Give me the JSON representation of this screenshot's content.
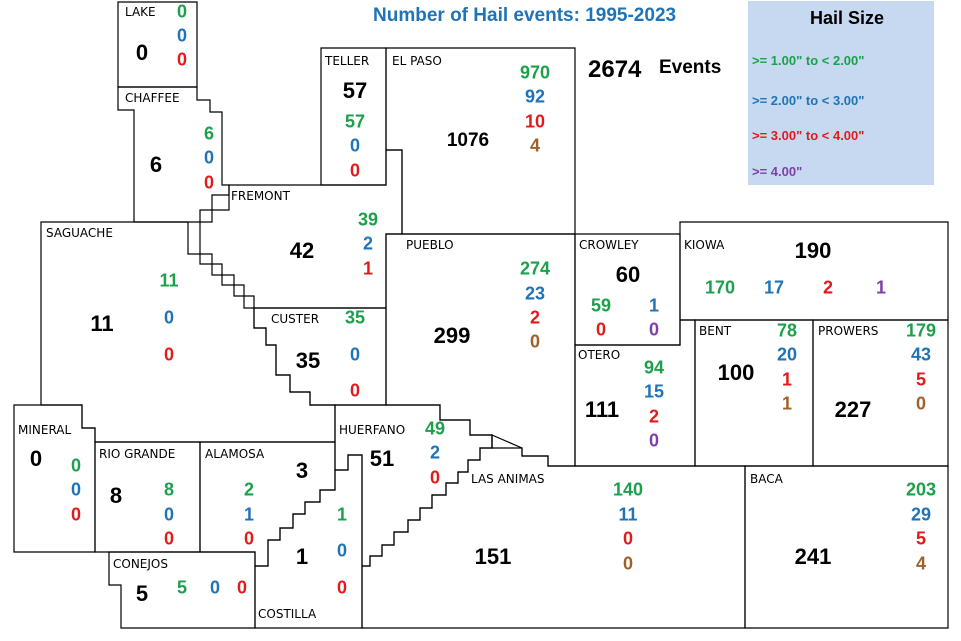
{
  "title": "Number of Hail events: 1995-2023",
  "total": {
    "value": "2674",
    "label": "Events"
  },
  "legend": {
    "title": "Hail Size",
    "items": [
      {
        "label": ">= 1.00\" to < 2.00\"",
        "color": "#1ba04b"
      },
      {
        "label": ">= 2.00\" to < 3.00\"",
        "color": "#1f73b7"
      },
      {
        "label": ">= 3.00\" to < 4.00\"",
        "color": "#e31a1c"
      },
      {
        "label": ">= 4.00\"",
        "color": "#7d3fa8"
      }
    ]
  },
  "counties": [
    {
      "key": "lake",
      "name": "LAKE",
      "total": "0",
      "counts": [
        "0",
        "0",
        "0"
      ]
    },
    {
      "key": "chaffee",
      "name": "CHAFFEE",
      "total": "6",
      "counts": [
        "6",
        "0",
        "0"
      ]
    },
    {
      "key": "teller",
      "name": "TELLER",
      "total": "57",
      "counts": [
        "57",
        "0",
        "0"
      ]
    },
    {
      "key": "el-paso",
      "name": "EL PASO",
      "total": "1076",
      "counts": [
        "970",
        "92",
        "10",
        "4"
      ]
    },
    {
      "key": "fremont",
      "name": "FREMONT",
      "total": "42",
      "counts": [
        "39",
        "2",
        "1"
      ]
    },
    {
      "key": "saguache",
      "name": "SAGUACHE",
      "total": "11",
      "counts": [
        "11",
        "0",
        "0"
      ]
    },
    {
      "key": "custer",
      "name": "CUSTER",
      "total": "35",
      "counts": [
        "35",
        "0",
        "0"
      ]
    },
    {
      "key": "pueblo",
      "name": "PUEBLO",
      "total": "299",
      "counts": [
        "274",
        "23",
        "2",
        "0"
      ]
    },
    {
      "key": "crowley",
      "name": "CROWLEY",
      "total": "60",
      "counts": [
        "59",
        "1",
        "0",
        "0"
      ]
    },
    {
      "key": "kiowa",
      "name": "KIOWA",
      "total": "190",
      "counts": [
        "170",
        "17",
        "2",
        "1"
      ]
    },
    {
      "key": "otero",
      "name": "OTERO",
      "total": "111",
      "counts": [
        "94",
        "15",
        "2",
        "0"
      ]
    },
    {
      "key": "bent",
      "name": "BENT",
      "total": "100",
      "counts": [
        "78",
        "20",
        "1",
        "1"
      ]
    },
    {
      "key": "prowers",
      "name": "PROWERS",
      "total": "227",
      "counts": [
        "179",
        "43",
        "5",
        "0"
      ]
    },
    {
      "key": "mineral",
      "name": "MINERAL",
      "total": "0",
      "counts": [
        "0",
        "0",
        "0"
      ]
    },
    {
      "key": "rio-grande",
      "name": "RIO GRANDE",
      "total": "8",
      "counts": [
        "8",
        "0",
        "0"
      ]
    },
    {
      "key": "alamosa",
      "name": "ALAMOSA",
      "total": "3",
      "counts": [
        "2",
        "1",
        "0"
      ]
    },
    {
      "key": "huerfano",
      "name": "HUERFANO",
      "total": "51",
      "counts": [
        "49",
        "2",
        "0"
      ]
    },
    {
      "key": "las-animas",
      "name": "LAS ANIMAS",
      "total": "151",
      "counts": [
        "140",
        "11",
        "0",
        "0"
      ]
    },
    {
      "key": "baca",
      "name": "BACA",
      "total": "241",
      "counts": [
        "203",
        "29",
        "5",
        "4"
      ]
    },
    {
      "key": "conejos",
      "name": "CONEJOS",
      "total": "5",
      "counts": [
        "5",
        "0",
        "0"
      ]
    },
    {
      "key": "costilla",
      "name": "COSTILLA",
      "total": "1",
      "counts": [
        "1",
        "0",
        "0"
      ]
    }
  ]
}
